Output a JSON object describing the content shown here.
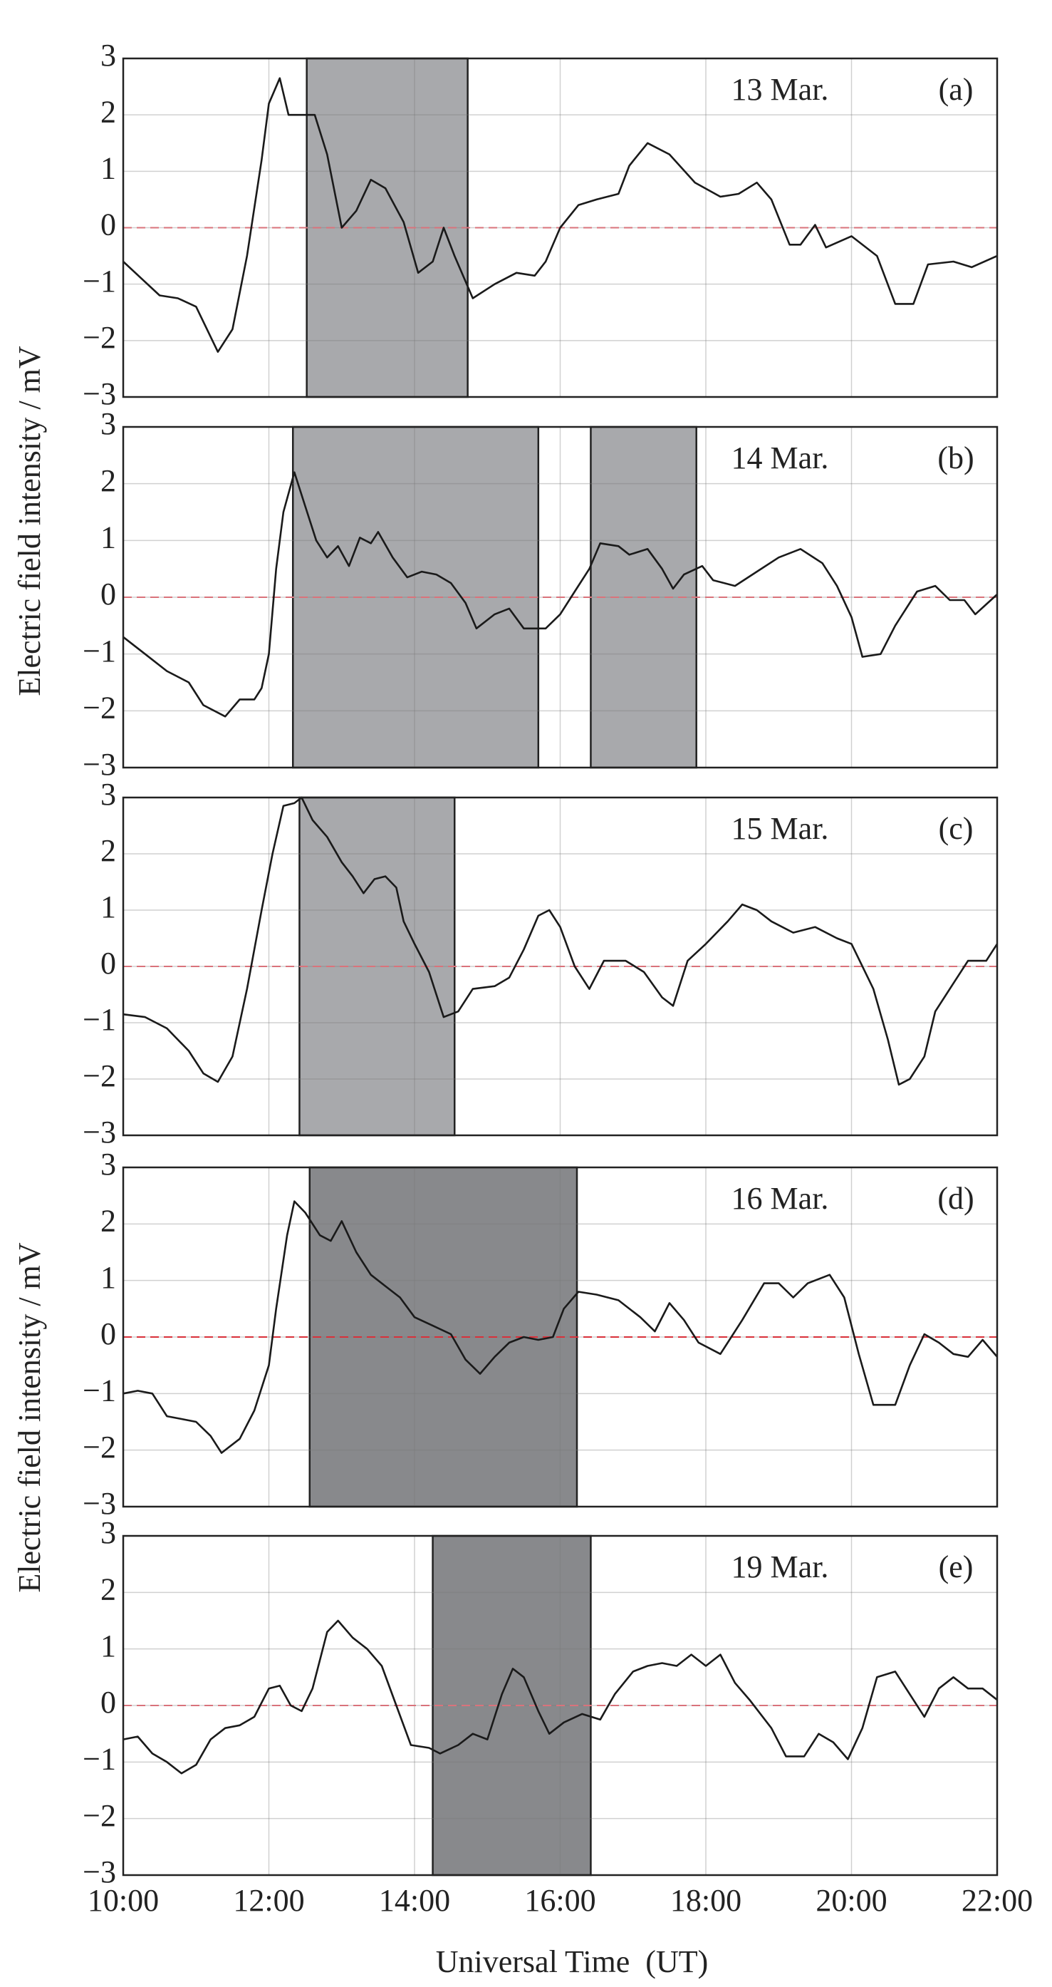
{
  "chart_data": [
    {
      "type": "line",
      "date": "13 Mar.",
      "panel": "(a)",
      "ylabel": "Electric field intensity / mV",
      "x": [
        10.0,
        10.25,
        10.5,
        10.75,
        11.0,
        11.3,
        11.5,
        11.7,
        11.9,
        12.0,
        12.15,
        12.27,
        12.5,
        12.63,
        12.8,
        13.0,
        13.2,
        13.4,
        13.6,
        13.85,
        14.05,
        14.25,
        14.4,
        14.55,
        14.8,
        15.1,
        15.4,
        15.65,
        15.8,
        16.0,
        16.25,
        16.5,
        16.8,
        16.95,
        17.2,
        17.5,
        17.85,
        18.2,
        18.45,
        18.7,
        18.9,
        19.15,
        19.3,
        19.5,
        19.65,
        20.0,
        20.35,
        20.6,
        20.85,
        21.05,
        21.4,
        21.65,
        22.0
      ],
      "series": [
        {
          "color": "#1a1a1a",
          "values": [
            -0.6,
            -0.9,
            -1.2,
            -1.25,
            -1.4,
            -2.2,
            -1.8,
            -0.5,
            1.2,
            2.2,
            2.65,
            2.0,
            2.0,
            2.0,
            1.3,
            0,
            0.3,
            0.85,
            0.7,
            0.1,
            -0.8,
            -0.6,
            0,
            -0.5,
            -1.25,
            -1.0,
            -0.8,
            -0.85,
            -0.6,
            0,
            0.4,
            0.5,
            0.6,
            1.1,
            1.5,
            1.3,
            0.8,
            0.55,
            0.6,
            0.8,
            0.5,
            -0.3,
            -0.3,
            0.05,
            -0.35,
            -0.15,
            -0.5,
            -1.35,
            -1.35,
            -0.65,
            -0.6,
            -0.7,
            -0.5
          ]
        }
      ],
      "shaded": [
        {
          "start": 12.52,
          "end": 14.73
        }
      ],
      "shade_color": "#a8a9ac",
      "xlim": [
        10,
        22
      ],
      "xticks": [
        10,
        12,
        14,
        16,
        18,
        20,
        22
      ],
      "ylim": [
        -3,
        3
      ],
      "yticks": [
        {
          "value": -3,
          "label": "−3"
        },
        {
          "value": -2,
          "label": "−2"
        },
        {
          "value": -1,
          "label": "−1"
        },
        0,
        1,
        2,
        3
      ],
      "grid": true,
      "hline": 0,
      "hline_color": "#d9737b"
    },
    {
      "type": "line",
      "date": "14 Mar.",
      "panel": "(b)",
      "x": [
        10.0,
        10.3,
        10.6,
        10.9,
        11.1,
        11.4,
        11.6,
        11.8,
        11.9,
        12.0,
        12.1,
        12.2,
        12.35,
        12.5,
        12.65,
        12.8,
        12.95,
        13.1,
        13.25,
        13.4,
        13.5,
        13.7,
        13.9,
        14.1,
        14.3,
        14.5,
        14.7,
        14.85,
        15.1,
        15.3,
        15.5,
        15.8,
        16.0,
        16.2,
        16.4,
        16.55,
        16.8,
        16.95,
        17.2,
        17.4,
        17.55,
        17.7,
        17.95,
        18.1,
        18.4,
        18.7,
        19.0,
        19.3,
        19.6,
        19.8,
        20.0,
        20.15,
        20.4,
        20.6,
        20.9,
        21.15,
        21.35,
        21.55,
        21.7,
        22.0
      ],
      "series": [
        {
          "color": "#1a1a1a",
          "values": [
            -0.7,
            -1.0,
            -1.3,
            -1.5,
            -1.9,
            -2.1,
            -1.8,
            -1.8,
            -1.6,
            -1.0,
            0.5,
            1.5,
            2.2,
            1.6,
            1.0,
            0.7,
            0.9,
            0.55,
            1.05,
            0.95,
            1.15,
            0.7,
            0.35,
            0.45,
            0.4,
            0.25,
            -0.1,
            -0.55,
            -0.3,
            -0.2,
            -0.55,
            -0.55,
            -0.3,
            0.1,
            0.5,
            0.95,
            0.9,
            0.75,
            0.85,
            0.5,
            0.15,
            0.4,
            0.55,
            0.3,
            0.2,
            0.45,
            0.7,
            0.85,
            0.6,
            0.2,
            -0.35,
            -1.05,
            -1.0,
            -0.5,
            0.1,
            0.2,
            -0.05,
            -0.05,
            -0.3,
            0.05
          ]
        }
      ],
      "shaded": [
        {
          "start": 12.33,
          "end": 15.7
        },
        {
          "start": 16.42,
          "end": 17.87
        }
      ],
      "shade_color": "#a8a9ac",
      "xlim": [
        10,
        22
      ],
      "xticks": [
        10,
        12,
        14,
        16,
        18,
        20,
        22
      ],
      "ylim": [
        -3,
        3
      ],
      "yticks": [
        {
          "value": -3,
          "label": "−3"
        },
        {
          "value": -2,
          "label": "−2"
        },
        {
          "value": -1,
          "label": "−1"
        },
        0,
        1,
        2,
        3
      ],
      "grid": true,
      "hline": 0,
      "hline_color": "#d9737b"
    },
    {
      "type": "line",
      "date": "15 Mar.",
      "panel": "(c)",
      "x": [
        10.0,
        10.3,
        10.6,
        10.9,
        11.1,
        11.3,
        11.5,
        11.7,
        11.9,
        12.05,
        12.2,
        12.35,
        12.45,
        12.6,
        12.8,
        13.0,
        13.15,
        13.3,
        13.45,
        13.6,
        13.75,
        13.85,
        14.0,
        14.2,
        14.4,
        14.6,
        14.8,
        15.1,
        15.3,
        15.5,
        15.7,
        15.85,
        16.0,
        16.2,
        16.4,
        16.6,
        16.9,
        17.15,
        17.4,
        17.55,
        17.75,
        18.0,
        18.3,
        18.5,
        18.7,
        18.9,
        19.2,
        19.5,
        19.8,
        20.0,
        20.3,
        20.5,
        20.65,
        20.8,
        21.0,
        21.15,
        21.4,
        21.6,
        21.85,
        22.0
      ],
      "series": [
        {
          "color": "#1a1a1a",
          "values": [
            -0.85,
            -0.9,
            -1.1,
            -1.5,
            -1.9,
            -2.05,
            -1.6,
            -0.4,
            1.0,
            2.0,
            2.85,
            2.9,
            3.0,
            2.6,
            2.3,
            1.85,
            1.6,
            1.3,
            1.55,
            1.6,
            1.4,
            0.8,
            0.4,
            -0.1,
            -0.9,
            -0.8,
            -0.4,
            -0.35,
            -0.2,
            0.3,
            0.9,
            1.0,
            0.7,
            0.0,
            -0.4,
            0.1,
            0.1,
            -0.1,
            -0.55,
            -0.7,
            0.1,
            0.4,
            0.8,
            1.1,
            1.0,
            0.8,
            0.6,
            0.7,
            0.5,
            0.4,
            -0.4,
            -1.3,
            -2.1,
            -2.0,
            -1.6,
            -0.8,
            -0.3,
            0.1,
            0.1,
            0.4
          ]
        }
      ],
      "shaded": [
        {
          "start": 12.42,
          "end": 14.55
        }
      ],
      "shade_color": "#a8a9ac",
      "xlim": [
        10,
        22
      ],
      "xticks": [
        10,
        12,
        14,
        16,
        18,
        20,
        22
      ],
      "ylim": [
        -3,
        3
      ],
      "yticks": [
        {
          "value": -3,
          "label": "−3"
        },
        {
          "value": -2,
          "label": "−2"
        },
        {
          "value": -1,
          "label": "−1"
        },
        0,
        1,
        2,
        3
      ],
      "grid": true,
      "hline": 0,
      "hline_color": "#d9737b"
    },
    {
      "type": "line",
      "date": "16 Mar.",
      "panel": "(d)",
      "ylabel": "Electric field intensity / mV",
      "x": [
        10.0,
        10.2,
        10.4,
        10.6,
        10.8,
        11.0,
        11.2,
        11.35,
        11.6,
        11.8,
        12.0,
        12.1,
        12.25,
        12.35,
        12.5,
        12.7,
        12.85,
        13.0,
        13.2,
        13.4,
        13.6,
        13.8,
        14.0,
        14.25,
        14.5,
        14.7,
        14.9,
        15.1,
        15.3,
        15.5,
        15.7,
        15.9,
        16.05,
        16.25,
        16.5,
        16.8,
        17.1,
        17.3,
        17.5,
        17.7,
        17.9,
        18.2,
        18.5,
        18.8,
        19.0,
        19.2,
        19.4,
        19.7,
        19.9,
        20.1,
        20.3,
        20.6,
        20.8,
        21.0,
        21.2,
        21.4,
        21.6,
        21.8,
        22.0
      ],
      "series": [
        {
          "color": "#1a1a1a",
          "values": [
            -1.0,
            -0.95,
            -1.0,
            -1.4,
            -1.45,
            -1.5,
            -1.75,
            -2.05,
            -1.8,
            -1.3,
            -0.5,
            0.5,
            1.8,
            2.4,
            2.2,
            1.8,
            1.7,
            2.05,
            1.5,
            1.1,
            0.9,
            0.7,
            0.35,
            0.2,
            0.05,
            -0.4,
            -0.65,
            -0.35,
            -0.1,
            0.0,
            -0.05,
            0.0,
            0.5,
            0.8,
            0.75,
            0.65,
            0.35,
            0.1,
            0.6,
            0.3,
            -0.1,
            -0.3,
            0.3,
            0.95,
            0.95,
            0.7,
            0.95,
            1.1,
            0.7,
            -0.3,
            -1.2,
            -1.2,
            -0.5,
            0.05,
            -0.1,
            -0.3,
            -0.35,
            -0.05,
            -0.35
          ]
        }
      ],
      "shaded": [
        {
          "start": 12.56,
          "end": 16.23
        }
      ],
      "shade_color": "#88898c",
      "xlim": [
        10,
        22
      ],
      "xticks": [
        10,
        12,
        14,
        16,
        18,
        20,
        22
      ],
      "ylim": [
        -3,
        3
      ],
      "yticks": [
        {
          "value": -3,
          "label": "−3"
        },
        {
          "value": -2,
          "label": "−2"
        },
        {
          "value": -1,
          "label": "−1"
        },
        0,
        1,
        2,
        3
      ],
      "grid": true,
      "hline": 0,
      "hline_color": "#d9303a"
    },
    {
      "type": "line",
      "date": "19 Mar.",
      "panel": "(e)",
      "xlabel": "Universal Time  (UT)",
      "x": [
        10.0,
        10.2,
        10.4,
        10.6,
        10.8,
        11.0,
        11.2,
        11.4,
        11.6,
        11.8,
        12.0,
        12.15,
        12.3,
        12.45,
        12.6,
        12.8,
        12.95,
        13.15,
        13.35,
        13.55,
        13.75,
        13.95,
        14.2,
        14.35,
        14.6,
        14.8,
        15.0,
        15.2,
        15.35,
        15.5,
        15.7,
        15.85,
        16.05,
        16.3,
        16.55,
        16.75,
        17.0,
        17.2,
        17.4,
        17.6,
        17.8,
        18.0,
        18.2,
        18.4,
        18.6,
        18.9,
        19.1,
        19.35,
        19.55,
        19.75,
        19.95,
        20.15,
        20.35,
        20.6,
        20.85,
        21.0,
        21.2,
        21.4,
        21.6,
        21.8,
        22.0
      ],
      "series": [
        {
          "color": "#1a1a1a",
          "values": [
            -0.6,
            -0.55,
            -0.85,
            -1.0,
            -1.2,
            -1.05,
            -0.6,
            -0.4,
            -0.35,
            -0.2,
            0.3,
            0.35,
            0.0,
            -0.1,
            0.3,
            1.3,
            1.5,
            1.2,
            1.0,
            0.7,
            0.0,
            -0.7,
            -0.75,
            -0.85,
            -0.7,
            -0.5,
            -0.6,
            0.2,
            0.65,
            0.5,
            -0.1,
            -0.5,
            -0.3,
            -0.15,
            -0.25,
            0.2,
            0.6,
            0.7,
            0.75,
            0.7,
            0.9,
            0.7,
            0.9,
            0.4,
            0.1,
            -0.4,
            -0.9,
            -0.9,
            -0.5,
            -0.65,
            -0.95,
            -0.4,
            0.5,
            0.6,
            0.1,
            -0.2,
            0.3,
            0.5,
            0.3,
            0.3,
            0.1
          ]
        }
      ],
      "shaded": [
        {
          "start": 14.25,
          "end": 16.42
        }
      ],
      "shade_color": "#88898c",
      "xlim": [
        10,
        22
      ],
      "xticks": [
        {
          "value": 10,
          "label": "10:00"
        },
        {
          "value": 12,
          "label": "12:00"
        },
        {
          "value": 14,
          "label": "14:00"
        },
        {
          "value": 16,
          "label": "16:00"
        },
        {
          "value": 18,
          "label": "18:00"
        },
        {
          "value": 20,
          "label": "20:00"
        },
        {
          "value": 22,
          "label": "22:00"
        }
      ],
      "ylim": [
        -3,
        3
      ],
      "yticks": [
        {
          "value": -3,
          "label": "−3"
        },
        {
          "value": -2,
          "label": "−2"
        },
        {
          "value": -1,
          "label": "−1"
        },
        0,
        1,
        2,
        3
      ],
      "grid": true,
      "hline": 0,
      "hline_color": "#d9737b"
    }
  ]
}
